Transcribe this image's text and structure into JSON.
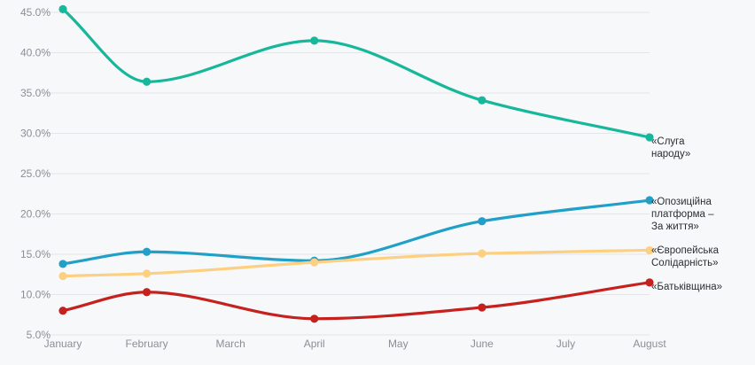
{
  "chart_data": {
    "type": "line",
    "categories": [
      "January",
      "February",
      "March",
      "April",
      "May",
      "June",
      "July",
      "August"
    ],
    "ylim": [
      5,
      45
    ],
    "yticks": [
      5,
      10,
      15,
      20,
      25,
      30,
      35,
      40,
      45
    ],
    "ytick_labels": [
      "5.0%",
      "10.0%",
      "15.0%",
      "20.0%",
      "25.0%",
      "30.0%",
      "35.0%",
      "40.0%",
      "45.0%"
    ],
    "grid": true,
    "series": [
      {
        "name": "«Слуга народу»",
        "label_lines": [
          "«Слуга",
          "народу»"
        ],
        "color": "#16b79a",
        "x": [
          "January",
          "February",
          "April",
          "June",
          "August"
        ],
        "values": [
          45.4,
          36.4,
          41.5,
          34.1,
          29.5
        ]
      },
      {
        "name": "«Опозиційна платформа – За життя»",
        "label_lines": [
          "«Опозиційна",
          "платформа –",
          "За життя»"
        ],
        "color": "#20a0c8",
        "x": [
          "January",
          "February",
          "April",
          "June",
          "August"
        ],
        "values": [
          13.8,
          15.3,
          14.2,
          19.1,
          21.7
        ]
      },
      {
        "name": "«Європейська Солідарність»",
        "label_lines": [
          "«Європейська",
          "Солідарність»"
        ],
        "color": "#fdd081",
        "x": [
          "January",
          "February",
          "April",
          "June",
          "August"
        ],
        "values": [
          12.3,
          12.6,
          14.0,
          15.1,
          15.5
        ]
      },
      {
        "name": "«Батьківщина»",
        "label_lines": [
          "«Батьківщина»"
        ],
        "color": "#c4211f",
        "x": [
          "January",
          "February",
          "April",
          "June",
          "August"
        ],
        "values": [
          8.0,
          10.3,
          7.0,
          8.4,
          11.5
        ]
      }
    ]
  }
}
